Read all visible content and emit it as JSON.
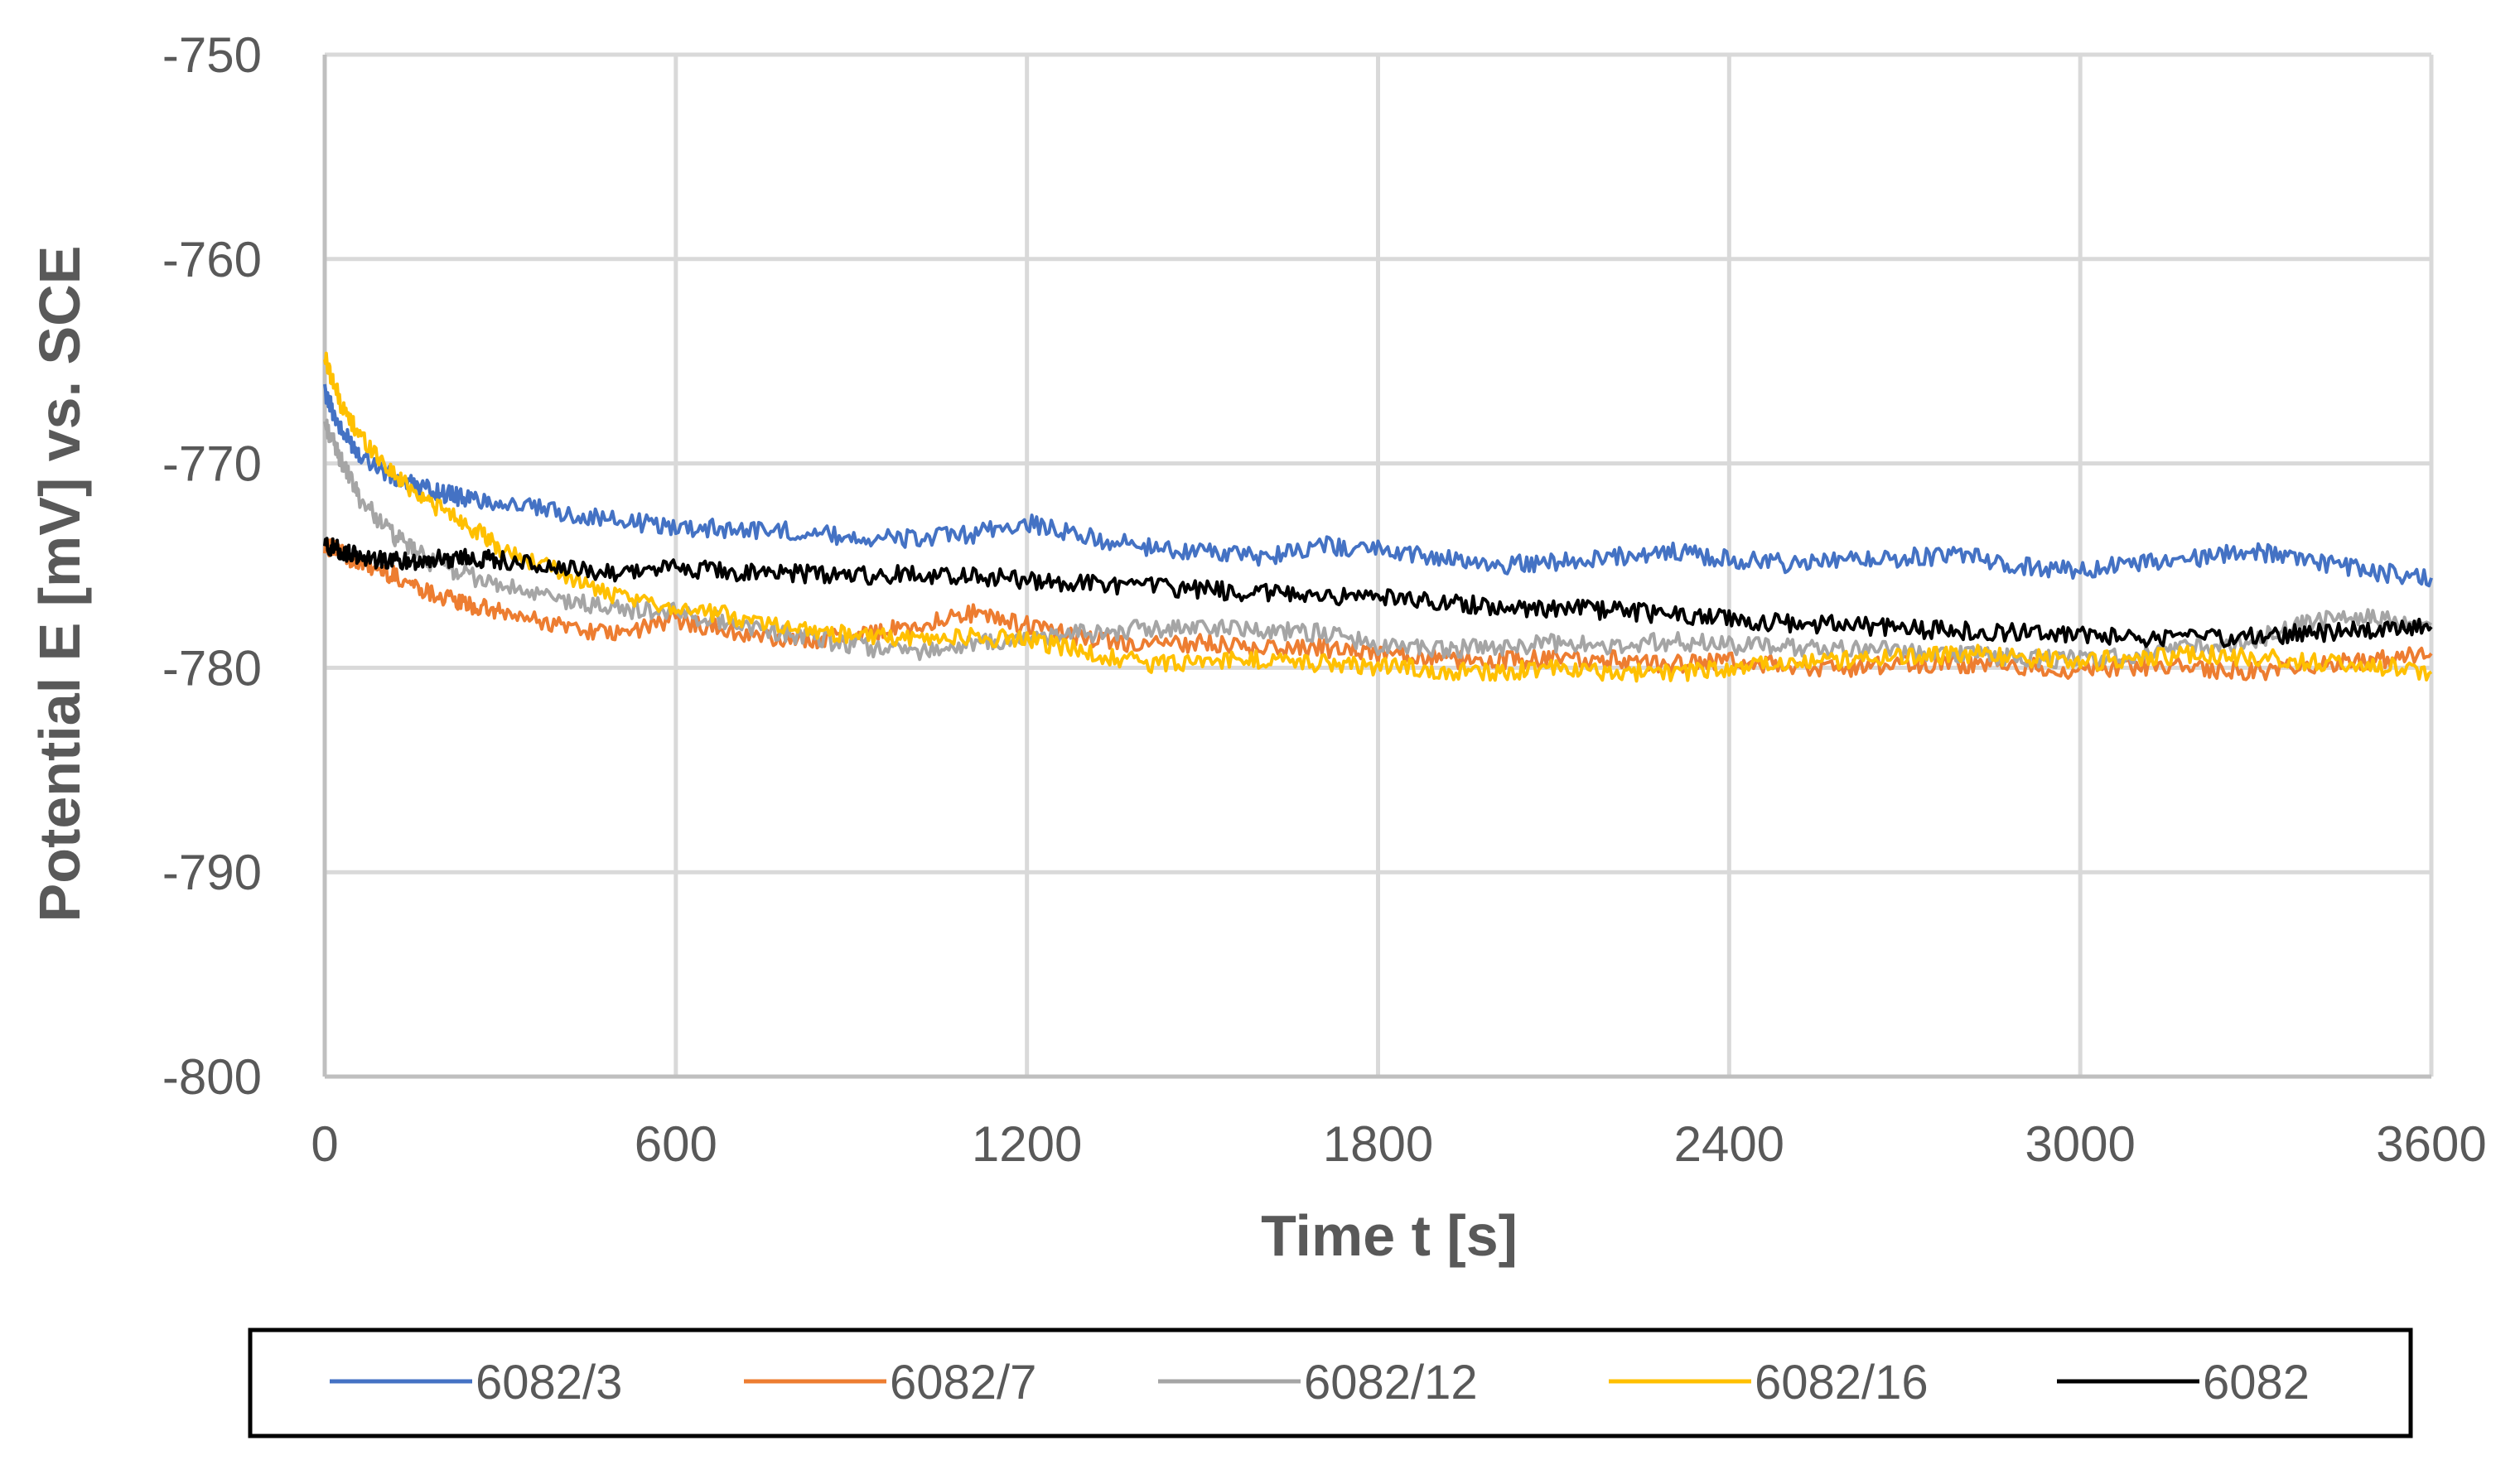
{
  "chart_data": {
    "type": "line",
    "title": "",
    "xlabel": "Time t [s]",
    "ylabel": "Potential E [mV] vs. SCE",
    "xlim": [
      0,
      3600
    ],
    "ylim": [
      -800,
      -750
    ],
    "x_ticks": [
      "0",
      "600",
      "1200",
      "1800",
      "2400",
      "3000",
      "3600"
    ],
    "y_ticks": [
      "-750",
      "-760",
      "-770",
      "-780",
      "-790",
      "-800"
    ],
    "grid": true,
    "legend_position": "bottom",
    "x": [
      0,
      30,
      60,
      120,
      180,
      240,
      300,
      400,
      500,
      600,
      700,
      800,
      900,
      1000,
      1100,
      1200,
      1300,
      1400,
      1500,
      1600,
      1700,
      1800,
      1900,
      2000,
      2100,
      2200,
      2300,
      2400,
      2500,
      2600,
      2700,
      2800,
      2900,
      3000,
      3100,
      3200,
      3300,
      3400,
      3500,
      3600
    ],
    "series": [
      {
        "name": "6082/3",
        "color": "#4472C4",
        "values": [
          -766.5,
          -768.5,
          -769.5,
          -770.8,
          -771.3,
          -771.7,
          -771.9,
          -772.4,
          -772.8,
          -773.1,
          -773.2,
          -773.3,
          -773.6,
          -773.7,
          -773.5,
          -772.9,
          -773.6,
          -774.1,
          -774.3,
          -774.6,
          -774.0,
          -774.2,
          -774.6,
          -775.0,
          -774.8,
          -774.6,
          -774.3,
          -774.7,
          -774.9,
          -774.8,
          -774.6,
          -774.5,
          -775.0,
          -775.2,
          -774.9,
          -774.6,
          -774.3,
          -774.8,
          -775.3,
          -775.6
        ]
      },
      {
        "name": "6082/7",
        "color": "#ED7D31",
        "values": [
          -774.0,
          -774.4,
          -774.9,
          -775.5,
          -776.3,
          -776.9,
          -777.3,
          -777.9,
          -778.4,
          -777.6,
          -778.3,
          -778.7,
          -778.4,
          -778.0,
          -777.3,
          -777.9,
          -778.6,
          -778.9,
          -778.8,
          -779.1,
          -779.0,
          -779.3,
          -779.6,
          -779.7,
          -779.5,
          -779.6,
          -779.8,
          -779.7,
          -779.9,
          -780.0,
          -779.8,
          -779.8,
          -779.9,
          -780.1,
          -779.9,
          -780.0,
          -780.2,
          -779.9,
          -779.6,
          -779.3
        ]
      },
      {
        "name": "6082/12",
        "color": "#A5A5A5",
        "values": [
          -768.0,
          -770.0,
          -771.7,
          -773.6,
          -774.8,
          -775.4,
          -776.0,
          -776.7,
          -777.1,
          -777.3,
          -777.8,
          -778.4,
          -778.9,
          -779.2,
          -778.9,
          -778.6,
          -778.3,
          -778.1,
          -778.0,
          -778.1,
          -778.3,
          -778.9,
          -779.1,
          -779.0,
          -778.8,
          -778.9,
          -778.7,
          -778.9,
          -779.0,
          -779.1,
          -779.2,
          -779.3,
          -779.5,
          -779.6,
          -779.4,
          -779.0,
          -778.6,
          -777.7,
          -777.6,
          -777.9
        ]
      },
      {
        "name": "6082/16",
        "color": "#FFC000",
        "values": [
          -764.8,
          -767.3,
          -768.6,
          -770.6,
          -771.9,
          -772.9,
          -774.2,
          -775.3,
          -776.6,
          -777.0,
          -777.5,
          -778.0,
          -778.4,
          -778.6,
          -778.5,
          -778.6,
          -779.2,
          -779.8,
          -779.7,
          -779.6,
          -779.8,
          -779.9,
          -780.1,
          -780.2,
          -780.0,
          -780.2,
          -780.3,
          -780.0,
          -779.8,
          -779.6,
          -779.5,
          -779.3,
          -779.5,
          -779.7,
          -779.5,
          -779.3,
          -779.5,
          -779.7,
          -779.9,
          -780.2
        ]
      },
      {
        "name": "6082",
        "color": "#000000",
        "values": [
          -774.0,
          -774.3,
          -774.6,
          -774.8,
          -774.7,
          -774.6,
          -774.7,
          -775.2,
          -775.3,
          -775.1,
          -775.3,
          -775.4,
          -775.5,
          -775.4,
          -775.5,
          -775.7,
          -775.9,
          -776.0,
          -776.2,
          -776.3,
          -776.5,
          -776.6,
          -776.8,
          -777.0,
          -777.1,
          -777.2,
          -777.4,
          -777.6,
          -777.8,
          -777.9,
          -778.1,
          -778.2,
          -778.3,
          -778.3,
          -778.5,
          -778.6,
          -778.4,
          -778.3,
          -778.1,
          -778.0
        ]
      }
    ]
  }
}
